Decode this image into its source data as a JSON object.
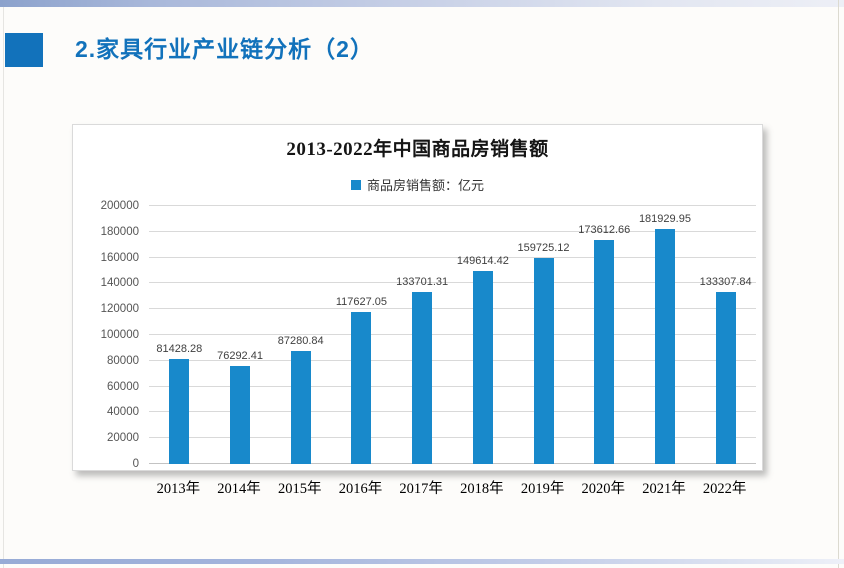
{
  "page": {
    "title": "2.家具行业产业链分析（2）",
    "accent_color": "#1272BB"
  },
  "chart_data": {
    "type": "bar",
    "title": "2013-2022年中国商品房销售额",
    "legend": [
      {
        "label": "商品房销售额：亿元",
        "color": "#1889CB"
      }
    ],
    "legend_position": "top",
    "categories": [
      "2013年",
      "2014年",
      "2015年",
      "2016年",
      "2017年",
      "2018年",
      "2019年",
      "2020年",
      "2021年",
      "2022年"
    ],
    "values": [
      81428.28,
      76292.41,
      87280.84,
      117627.05,
      133701.31,
      149614.42,
      159725.12,
      173612.66,
      181929.95,
      133307.84
    ],
    "value_labels": [
      "81428.28",
      "76292.41",
      "87280.84",
      "117627.05",
      "133701.31",
      "149614.42",
      "159725.12",
      "173612.66",
      "181929.95",
      "133307.84"
    ],
    "xlabel": "",
    "ylabel": "",
    "ylim": [
      0,
      200000
    ],
    "ytick_step": 20000,
    "yticks": [
      "0",
      "20000",
      "40000",
      "60000",
      "80000",
      "100000",
      "120000",
      "140000",
      "160000",
      "180000",
      "200000"
    ],
    "grid": true,
    "bar_color": "#1889CB"
  }
}
